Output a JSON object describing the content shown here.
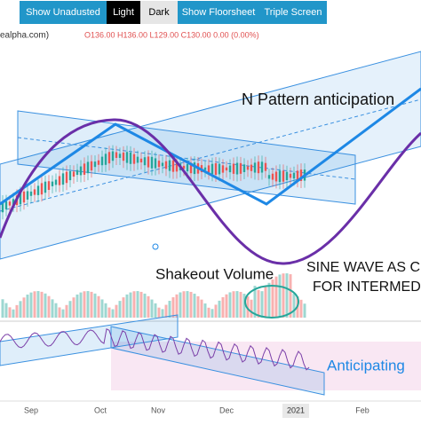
{
  "toolbar": {
    "buttons": [
      "Show Unadusted",
      "Light",
      "Dark",
      "Show Floorsheet",
      "Triple Screen"
    ]
  },
  "legend": {
    "source": "ealpha.com)",
    "ohlc": "O136.00 H136.00 L129.00 C130.00 0.00 (0.00%)"
  },
  "annotations": {
    "pattern": "N Pattern anticipation",
    "volume": "Shakeout Volume",
    "sine_1": "SINE WAVE AS C",
    "sine_2": "FOR INTERMED",
    "anticipating": "Anticipating"
  },
  "x_axis": {
    "labels": [
      "Sep",
      "Oct",
      "Nov",
      "Dec",
      "2021",
      "Feb"
    ]
  }
}
